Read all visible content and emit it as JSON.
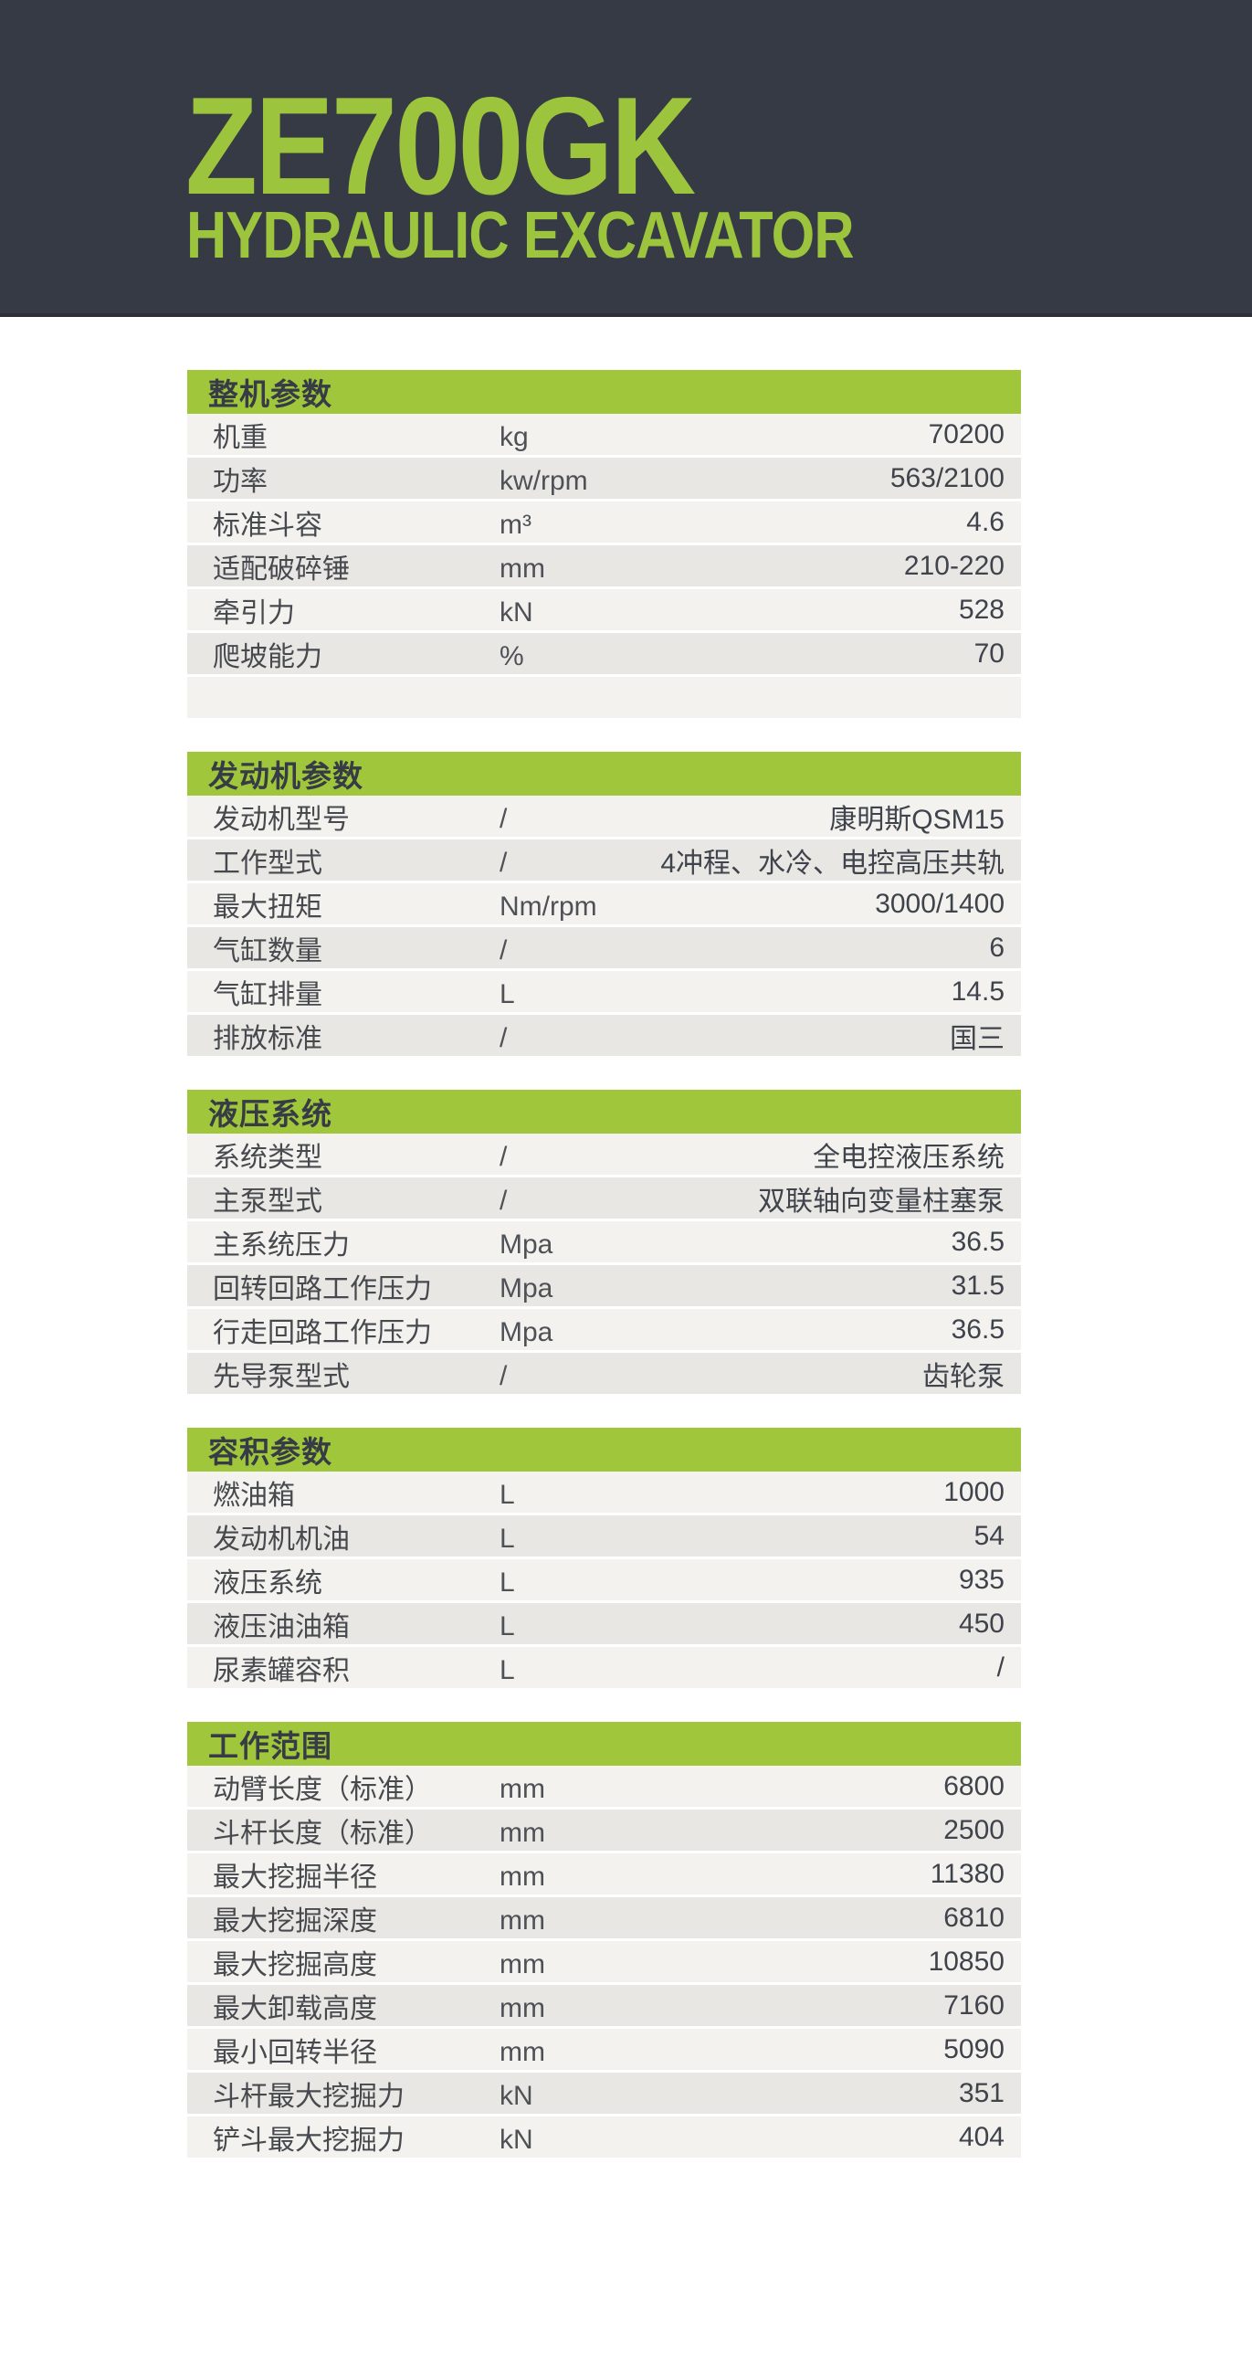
{
  "header": {
    "model": "ZE700GK",
    "subtitle": "HYDRAULIC EXCAVATOR"
  },
  "colors": {
    "banner_bg": "#363a45",
    "accent_green": "#a0c63c",
    "row_light": "#f3f2ef",
    "row_dark": "#e9e7e4",
    "title_green": "#9cc43c",
    "text_dark": "#3f434b"
  },
  "sections": [
    {
      "title": "整机参数",
      "rows": [
        {
          "label": "机重",
          "unit": "kg",
          "value": "70200"
        },
        {
          "label": "功率",
          "unit": "kw/rpm",
          "value": "563/2100"
        },
        {
          "label": "标准斗容",
          "unit": "m³",
          "value": "4.6"
        },
        {
          "label": "适配破碎锤",
          "unit": "mm",
          "value": "210-220"
        },
        {
          "label": "牵引力",
          "unit": "kN",
          "value": "528"
        },
        {
          "label": "爬坡能力",
          "unit": "%",
          "value": "70"
        },
        {
          "label": "",
          "unit": "",
          "value": ""
        }
      ]
    },
    {
      "title": "发动机参数",
      "rows": [
        {
          "label": "发动机型号",
          "unit": "/",
          "value": "康明斯QSM15"
        },
        {
          "label": "工作型式",
          "unit": "/",
          "value": "4冲程、水冷、电控高压共轨"
        },
        {
          "label": "最大扭矩",
          "unit": "Nm/rpm",
          "value": "3000/1400"
        },
        {
          "label": "气缸数量",
          "unit": "/",
          "value": "6"
        },
        {
          "label": "气缸排量",
          "unit": "L",
          "value": "14.5"
        },
        {
          "label": "排放标准",
          "unit": "/",
          "value": "国三"
        }
      ]
    },
    {
      "title": "液压系统",
      "rows": [
        {
          "label": "系统类型",
          "unit": "/",
          "value": "全电控液压系统"
        },
        {
          "label": "主泵型式",
          "unit": "/",
          "value": "双联轴向变量柱塞泵"
        },
        {
          "label": "主系统压力",
          "unit": "Mpa",
          "value": "36.5"
        },
        {
          "label": "回转回路工作压力",
          "unit": "Mpa",
          "value": "31.5"
        },
        {
          "label": "行走回路工作压力",
          "unit": "Mpa",
          "value": "36.5"
        },
        {
          "label": "先导泵型式",
          "unit": "/",
          "value": "齿轮泵"
        }
      ]
    },
    {
      "title": "容积参数",
      "rows": [
        {
          "label": "燃油箱",
          "unit": "L",
          "value": "1000"
        },
        {
          "label": "发动机机油",
          "unit": "L",
          "value": "54"
        },
        {
          "label": "液压系统",
          "unit": "L",
          "value": "935"
        },
        {
          "label": "液压油油箱",
          "unit": "L",
          "value": "450"
        },
        {
          "label": "尿素罐容积",
          "unit": "L",
          "value": "/"
        }
      ]
    },
    {
      "title": "工作范围",
      "rows": [
        {
          "label": "动臂长度（标准）",
          "unit": "mm",
          "value": "6800"
        },
        {
          "label": "斗杆长度（标准）",
          "unit": "mm",
          "value": "2500"
        },
        {
          "label": "最大挖掘半径",
          "unit": "mm",
          "value": "11380"
        },
        {
          "label": "最大挖掘深度",
          "unit": "mm",
          "value": "6810"
        },
        {
          "label": "最大挖掘高度",
          "unit": "mm",
          "value": "10850"
        },
        {
          "label": "最大卸载高度",
          "unit": "mm",
          "value": "7160"
        },
        {
          "label": "最小回转半径",
          "unit": "mm",
          "value": "5090"
        },
        {
          "label": "斗杆最大挖掘力",
          "unit": "kN",
          "value": "351"
        },
        {
          "label": "铲斗最大挖掘力",
          "unit": "kN",
          "value": "404"
        }
      ]
    }
  ]
}
